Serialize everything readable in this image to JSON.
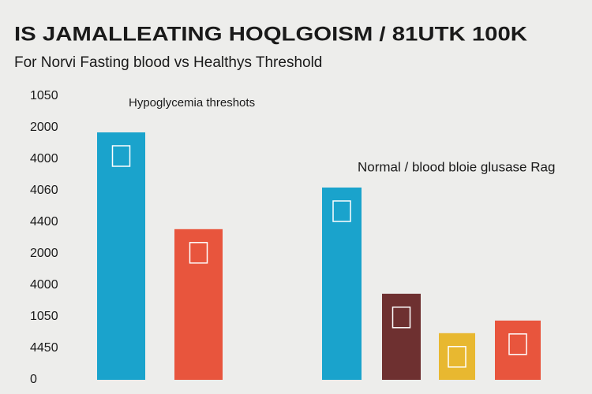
{
  "chart_data": {
    "type": "bar",
    "title": "IS JAMALLEATING HOQLGOISM / 81UTK 100K",
    "subtitle": "For  Norvi Fasting blood vs  Healthys Threshold",
    "annotations": [
      "Hypoglycemia threshots",
      "Normal / blood bloie glusase Rag"
    ],
    "categories": [
      null,
      null,
      null,
      null,
      null,
      null
    ],
    "values": [
      7.85,
      4.78,
      6.1,
      2.73,
      1.48,
      1.88
    ],
    "colors": [
      "#1aa3cc",
      "#e8553d",
      "#1aa3cc",
      "#6e3030",
      "#e8b830",
      "#e8553d"
    ],
    "ylim": [
      0,
      9
    ],
    "yticks": [
      0,
      {
        "value": 1,
        "label": "4450"
      },
      {
        "value": 2,
        "label": "1050"
      },
      {
        "value": 3,
        "label": "4000"
      },
      {
        "value": 4,
        "label": "2000"
      },
      {
        "value": 5,
        "label": "4400"
      },
      {
        "value": 6,
        "label": "4060"
      },
      {
        "value": 7,
        "label": "4000"
      },
      {
        "value": 8,
        "label": "2000"
      },
      {
        "value": 9,
        "label": "1050"
      }
    ],
    "grid": false
  }
}
